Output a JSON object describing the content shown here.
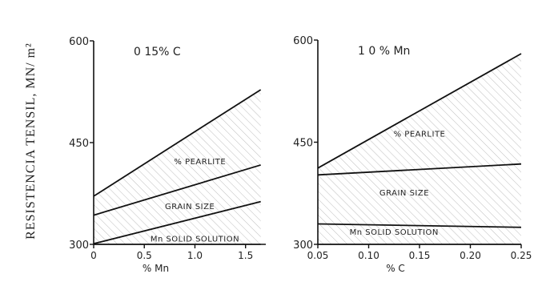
{
  "figure": {
    "ylabel": "RESISTENCIA TENSIL, MN/ m²"
  },
  "chart_data": [
    {
      "type": "area",
      "title": "0 15% C",
      "xlabel": "% Mn",
      "xlim": [
        0,
        1.7
      ],
      "ylim": [
        300,
        600
      ],
      "xticks": [
        {
          "v": 0,
          "label": "0"
        },
        {
          "v": 0.5,
          "label": "0.5"
        },
        {
          "v": 1.0,
          "label": "1.0"
        },
        {
          "v": 1.5,
          "label": "1.5"
        }
      ],
      "yticks": [
        {
          "v": 300,
          "label": "300"
        },
        {
          "v": 450,
          "label": "450"
        },
        {
          "v": 600,
          "label": "600"
        }
      ],
      "boundaries": [
        {
          "x": [
            0,
            1.65
          ],
          "y": [
            300,
            300
          ]
        },
        {
          "x": [
            0,
            1.65
          ],
          "y": [
            301,
            363
          ]
        },
        {
          "x": [
            0,
            1.65
          ],
          "y": [
            343,
            417
          ]
        },
        {
          "x": [
            0,
            1.65
          ],
          "y": [
            371,
            528
          ]
        }
      ],
      "bands": [
        {
          "label": "Mn SOLID SOLUTION",
          "label_at": [
            1.0,
            304
          ]
        },
        {
          "label": "GRAIN SIZE",
          "label_at": [
            0.95,
            352
          ]
        },
        {
          "label": "% PEARLITE",
          "label_at": [
            1.05,
            418
          ]
        }
      ]
    },
    {
      "type": "area",
      "title": "1 0 % Mn",
      "xlabel": "% C",
      "xlim": [
        0.05,
        0.25
      ],
      "ylim": [
        300,
        600
      ],
      "xticks": [
        {
          "v": 0.05,
          "label": "0.05"
        },
        {
          "v": 0.1,
          "label": "0.10"
        },
        {
          "v": 0.15,
          "label": "0.15"
        },
        {
          "v": 0.2,
          "label": "0.20"
        },
        {
          "v": 0.25,
          "label": "0.25"
        }
      ],
      "yticks": [
        {
          "v": 300,
          "label": "300"
        },
        {
          "v": 450,
          "label": "450"
        },
        {
          "v": 600,
          "label": "600"
        }
      ],
      "boundaries": [
        {
          "x": [
            0.05,
            0.25
          ],
          "y": [
            300,
            300
          ]
        },
        {
          "x": [
            0.05,
            0.25
          ],
          "y": [
            330,
            325
          ]
        },
        {
          "x": [
            0.05,
            0.25
          ],
          "y": [
            402,
            418
          ]
        },
        {
          "x": [
            0.05,
            0.25
          ],
          "y": [
            412,
            580
          ]
        }
      ],
      "bands": [
        {
          "label": "Mn SOLID SOLUTION",
          "label_at": [
            0.125,
            314
          ]
        },
        {
          "label": "GRAIN SIZE",
          "label_at": [
            0.135,
            372
          ]
        },
        {
          "label": "% PEARLITE",
          "label_at": [
            0.15,
            458
          ]
        }
      ]
    }
  ]
}
